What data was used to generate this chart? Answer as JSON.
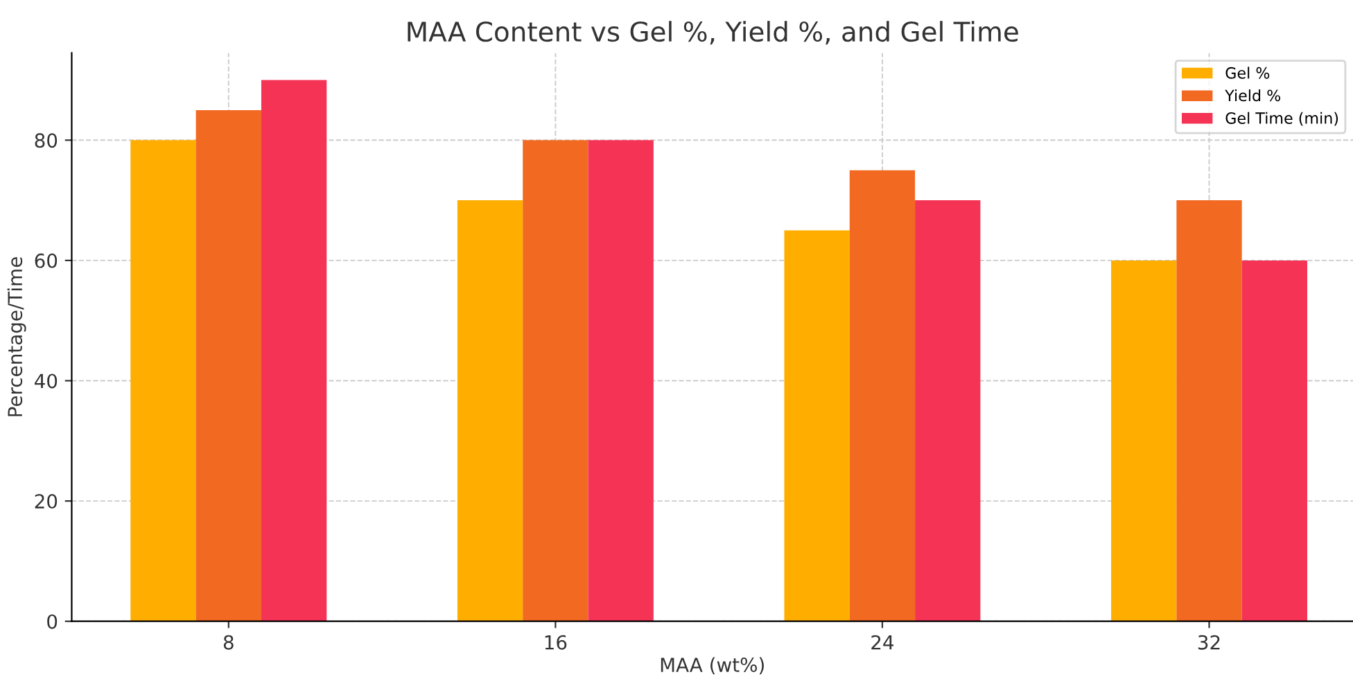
{
  "chart_data": {
    "type": "bar",
    "title": "MAA Content vs Gel %, Yield %, and Gel Time",
    "xlabel": "MAA (wt%)",
    "ylabel": "Percentage/Time",
    "categories": [
      "8",
      "16",
      "24",
      "32"
    ],
    "series": [
      {
        "name": "Gel %",
        "color": "#ffae00",
        "values": [
          80,
          70,
          65,
          60
        ]
      },
      {
        "name": "Yield %",
        "color": "#f26922",
        "values": [
          85,
          80,
          75,
          70
        ]
      },
      {
        "name": "Gel Time (min)",
        "color": "#f53355",
        "values": [
          90,
          80,
          70,
          60
        ]
      }
    ],
    "ylim": [
      0,
      94.5
    ],
    "yticks": [
      0,
      20,
      40,
      60,
      80
    ],
    "grid": true,
    "legend": "top right"
  }
}
